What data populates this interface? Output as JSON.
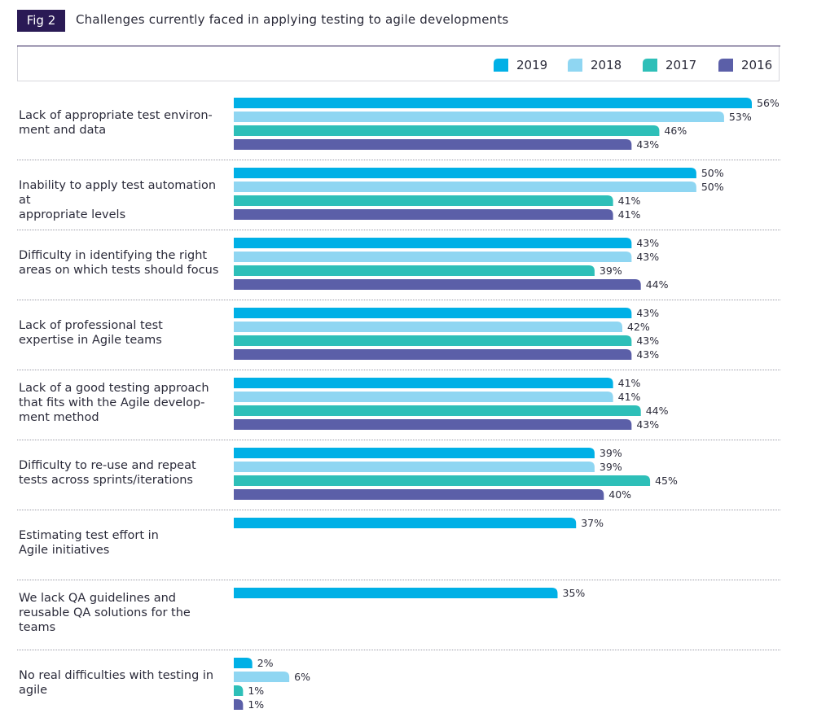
{
  "figure": {
    "badge": "Fig 2",
    "title": "Challenges currently faced in applying testing to agile developments"
  },
  "colors": {
    "2019": "#00b0e6",
    "2018": "#8fd6f2",
    "2017": "#2ebfb8",
    "2016": "#5b5fa8",
    "badge": "#2a1a55"
  },
  "chart_data": {
    "type": "bar",
    "orientation": "horizontal",
    "title": "Challenges currently faced in applying testing to agile developments",
    "xlim": [
      0,
      56
    ],
    "legend_position": "top-right",
    "value_suffix": "%",
    "categories": [
      "Lack of appropriate test environ-ment and data",
      "Inability to apply test automation at appropriate levels",
      "Difficulty in identifying the right areas on which tests should focus",
      "Lack of professional test expertise in Agile teams",
      "Lack of a good testing approach that fits with the Agile develop-ment method",
      "Difficulty to re-use and repeat tests across sprints/iterations",
      "Estimating test effort in Agile initiatives",
      "We lack QA guidelines and reusable QA solutions for the teams",
      "No real difficulties with testing in agile"
    ],
    "category_lines": [
      [
        "Lack of appropriate test environ-",
        "ment and data"
      ],
      [
        "Inability to apply test automation at",
        "appropriate levels"
      ],
      [
        "Difficulty in identifying the right",
        "areas on which tests should focus"
      ],
      [
        "Lack of professional test",
        "expertise in Agile teams"
      ],
      [
        "Lack of a good testing approach",
        "that fits with the Agile develop-",
        "ment method"
      ],
      [
        "Difficulty to re-use and repeat",
        "tests across sprints/iterations"
      ],
      [
        "Estimating test effort in",
        "Agile initiatives"
      ],
      [
        "We lack QA guidelines and",
        "reusable QA solutions for the",
        "teams"
      ],
      [
        "No real difficulties with testing in",
        "agile"
      ]
    ],
    "series": [
      {
        "name": "2019",
        "values": [
          56,
          50,
          43,
          43,
          41,
          39,
          37,
          35,
          2
        ]
      },
      {
        "name": "2018",
        "values": [
          53,
          50,
          43,
          42,
          41,
          39,
          null,
          null,
          6
        ]
      },
      {
        "name": "2017",
        "values": [
          46,
          41,
          39,
          43,
          44,
          45,
          null,
          null,
          1
        ]
      },
      {
        "name": "2016",
        "values": [
          43,
          41,
          44,
          43,
          43,
          40,
          null,
          null,
          1
        ]
      }
    ]
  }
}
